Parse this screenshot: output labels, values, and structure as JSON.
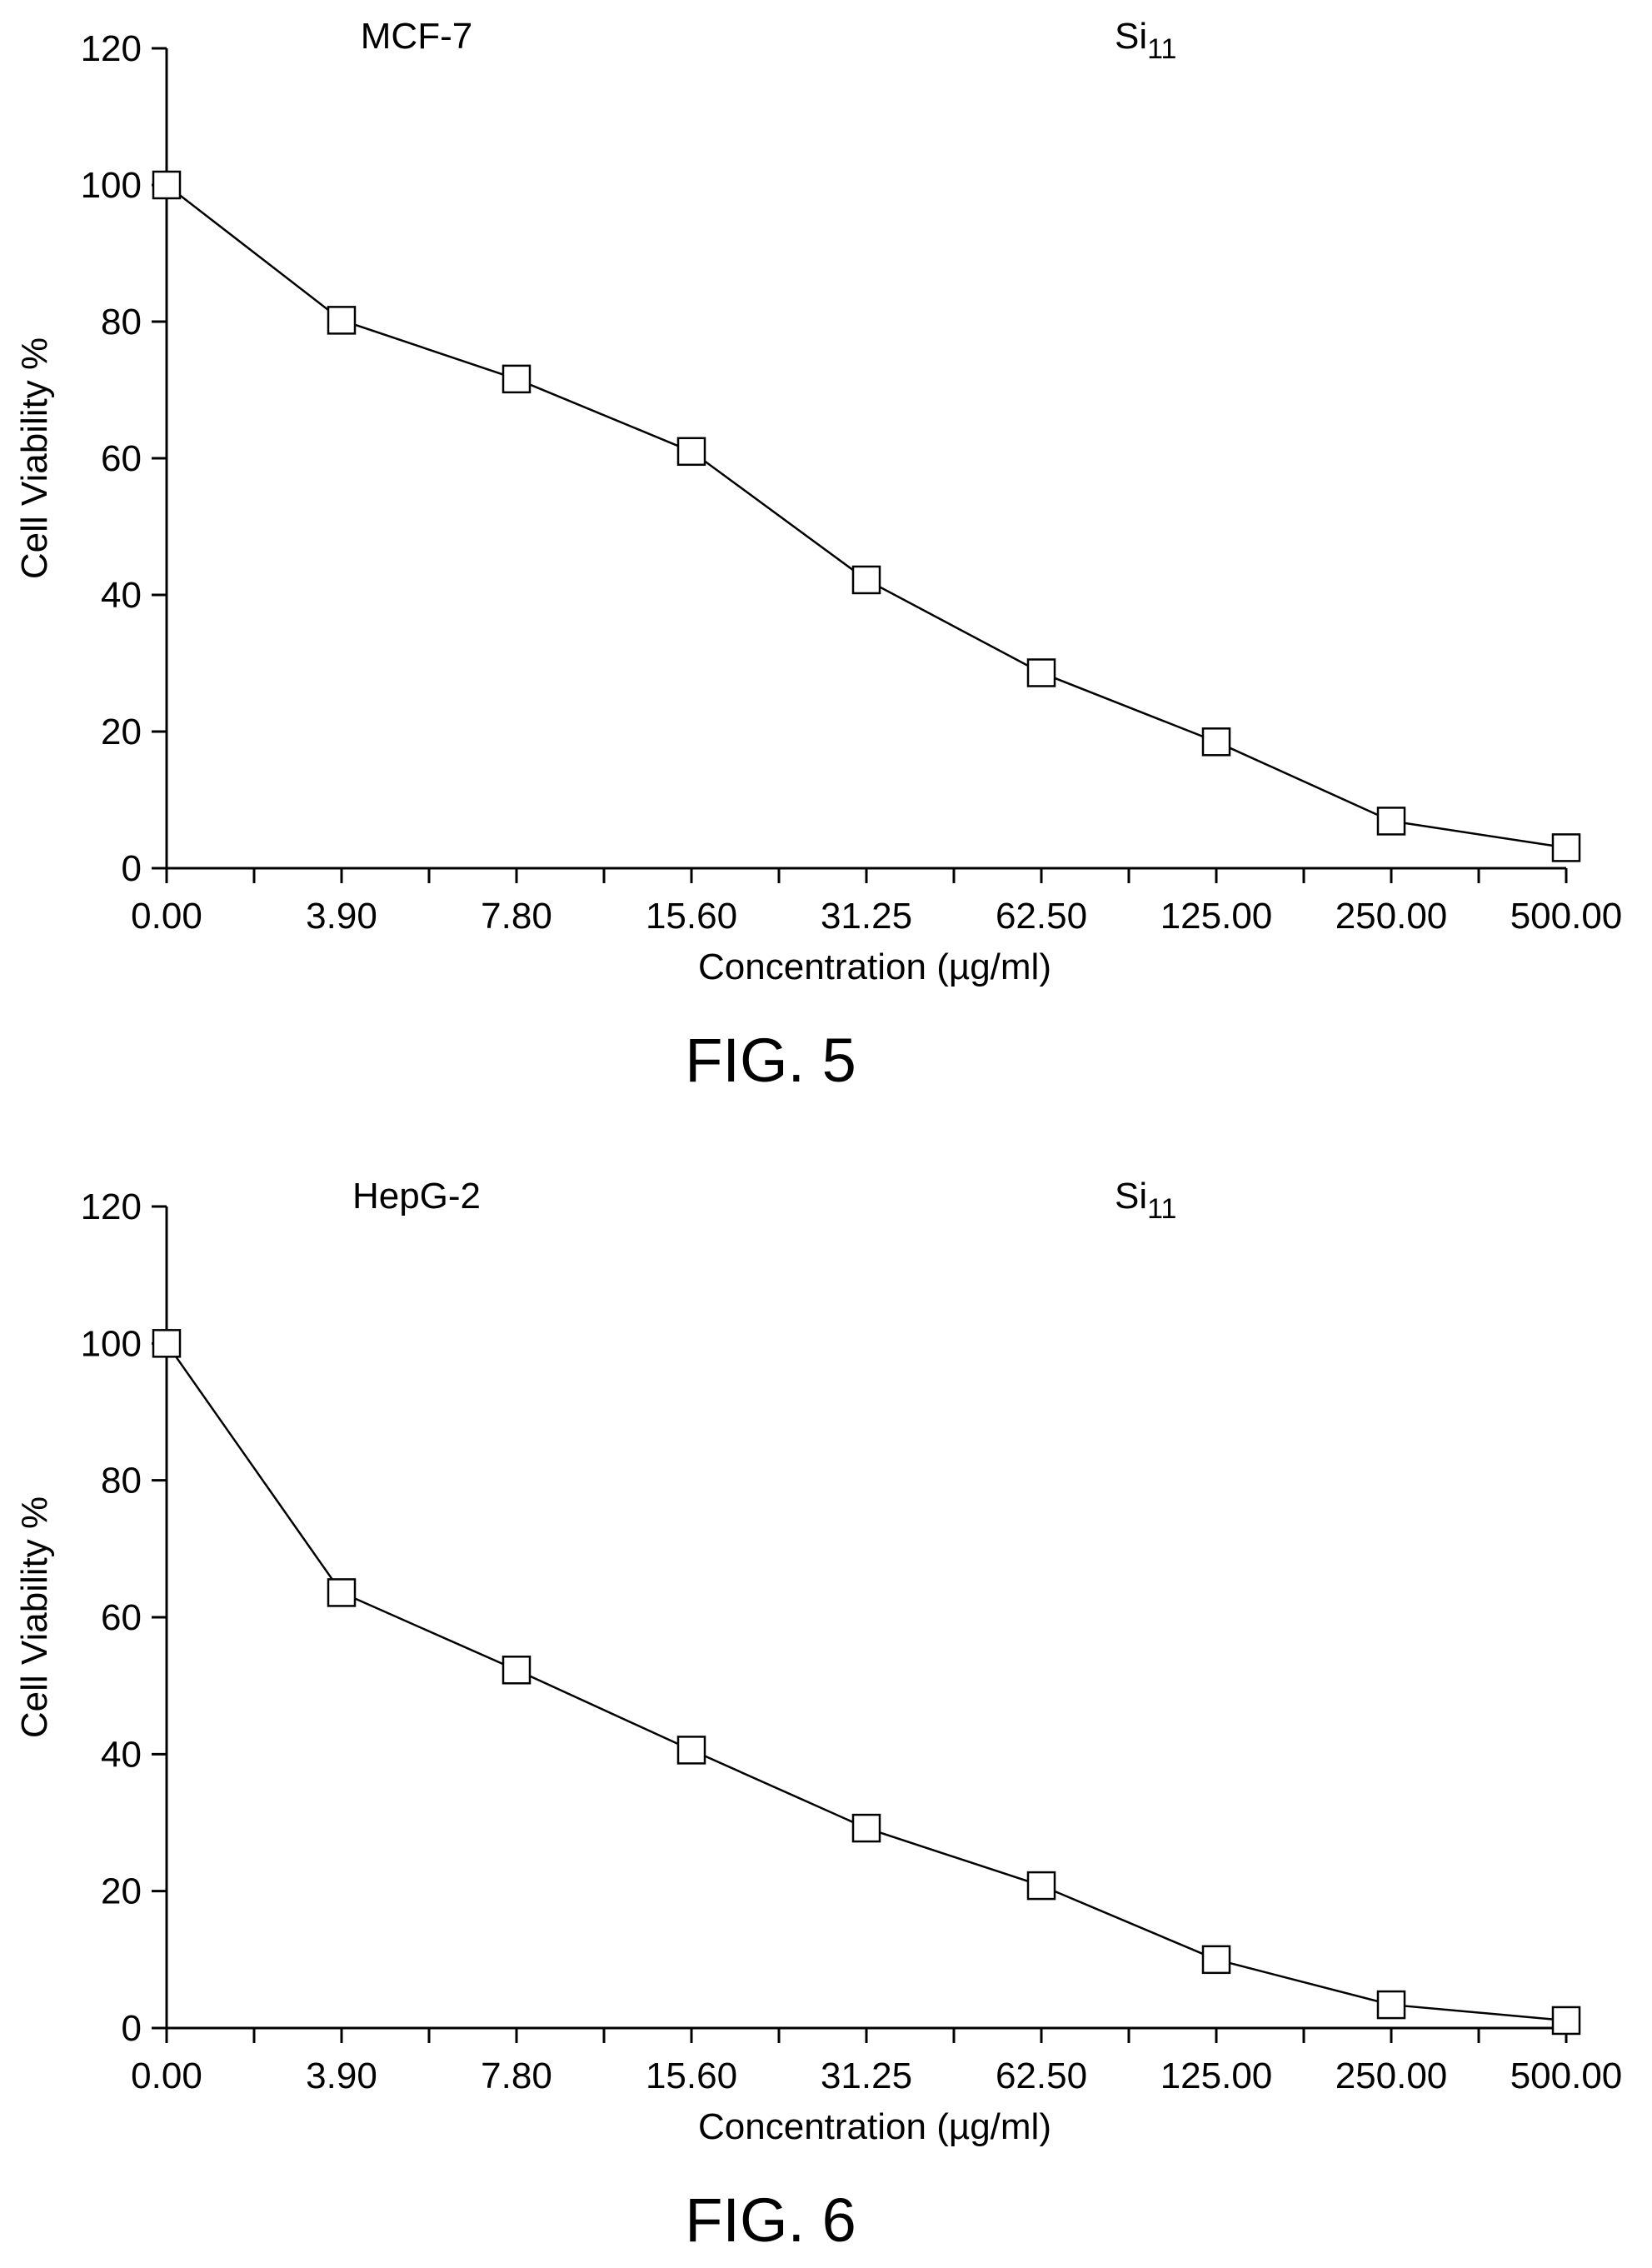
{
  "chart_data": [
    {
      "type": "line",
      "title": "MCF-7",
      "annotation": {
        "base": "Si",
        "sub": "11"
      },
      "caption": "FIG. 5",
      "xlabel": "Concentration (µg/ml)",
      "ylabel": "Cell Viability %",
      "categories": [
        "0.00",
        "3.90",
        "7.80",
        "15.60",
        "31.25",
        "62.50",
        "125.00",
        "250.00",
        "500.00"
      ],
      "ylim": [
        0,
        120
      ],
      "yticks": [
        0,
        20,
        40,
        60,
        80,
        100,
        120
      ],
      "grid": false,
      "marker": "open-square",
      "series": [
        {
          "values": [
            100,
            80.2,
            71.6,
            61.0,
            42.2,
            28.6,
            18.5,
            6.9,
            3.0
          ]
        }
      ]
    },
    {
      "type": "line",
      "title": "HepG-2",
      "annotation": {
        "base": "Si",
        "sub": "11"
      },
      "caption": "FIG. 6",
      "xlabel": "Concentration (µg/ml)",
      "ylabel": "Cell Viability %",
      "categories": [
        "0.00",
        "3.90",
        "7.80",
        "15.60",
        "31.25",
        "62.50",
        "125.00",
        "250.00",
        "500.00"
      ],
      "ylim": [
        0,
        120
      ],
      "yticks": [
        0,
        20,
        40,
        60,
        80,
        100,
        120
      ],
      "grid": false,
      "marker": "open-square",
      "series": [
        {
          "values": [
            100,
            63.6,
            52.3,
            40.6,
            29.2,
            20.8,
            10.0,
            3.4,
            1.1
          ]
        }
      ]
    }
  ]
}
